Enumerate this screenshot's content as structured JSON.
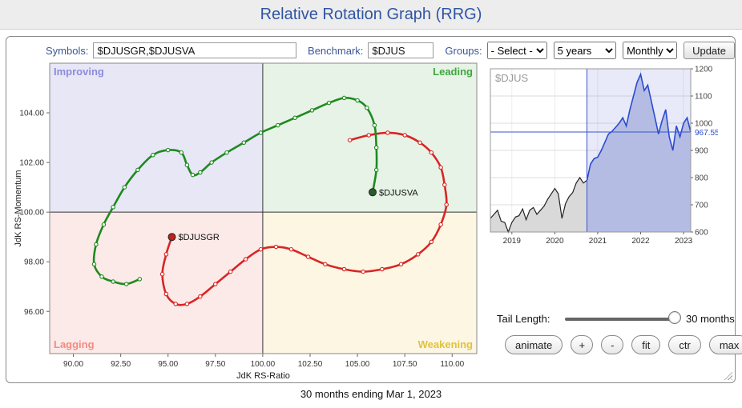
{
  "header": {
    "title": "Relative Rotation Graph (RRG)"
  },
  "colors": {
    "title": "#2f55a4",
    "toolbar_label": "#3a5795"
  },
  "toolbar": {
    "symbols_label": "Symbols:",
    "symbols_value": "$DJUSGR,$DJUSVA",
    "benchmark_label": "Benchmark:",
    "benchmark_value": "$DJUS",
    "groups_label": "Groups:",
    "groups_value": "- Select -",
    "period_value": "5 years",
    "interval_value": "Monthly",
    "update_label": "Update"
  },
  "tail": {
    "label": "Tail Length:",
    "value": "30 months"
  },
  "controls": [
    "animate",
    "+",
    "-",
    "fit",
    "ctr",
    "max"
  ],
  "footer": {
    "caption": "30 months ending Mar 1, 2023"
  },
  "chart_data": [
    {
      "type": "line",
      "title": "RRG rotation trails",
      "xlabel": "JdK RS-Ratio",
      "ylabel": "JdK RS-Momentum",
      "xlim": [
        88.75,
        111.3
      ],
      "ylim": [
        94.3,
        106.0
      ],
      "center": [
        100,
        100
      ],
      "x_tick_values": [
        90,
        92.5,
        95,
        97.5,
        100,
        102.5,
        105,
        107.5,
        110
      ],
      "x_tick_labels": [
        "90.00",
        "92.50",
        "95.00",
        "97.50",
        "100.00",
        "102.50",
        "105.00",
        "107.50",
        "110.00"
      ],
      "y_tick_values": [
        96,
        98,
        100,
        102,
        104
      ],
      "y_tick_labels": [
        "96.00",
        "98.00",
        "100.00",
        "102.00",
        "104.00"
      ],
      "quadrants": {
        "top_left": {
          "label": "Improving",
          "bg": "#e7e7f6",
          "color": "#8c8cdb"
        },
        "top_right": {
          "label": "Leading",
          "bg": "#e7f3e6",
          "color": "#3fa73f"
        },
        "bottom_left": {
          "label": "Lagging",
          "bg": "#fceae8",
          "color": "#f28b82"
        },
        "bottom_right": {
          "label": "Weakening",
          "bg": "#fcf6e3",
          "color": "#e2c23d"
        }
      },
      "series": [
        {
          "name": "$DJUSGR",
          "color": "#d92525",
          "end_color": "#c02020",
          "points": [
            [
              104.6,
              102.9
            ],
            [
              105.6,
              103.1
            ],
            [
              106.6,
              103.2
            ],
            [
              107.5,
              103.1
            ],
            [
              108.3,
              102.8
            ],
            [
              108.9,
              102.4
            ],
            [
              109.4,
              101.8
            ],
            [
              109.6,
              101.1
            ],
            [
              109.7,
              100.3
            ],
            [
              109.4,
              99.5
            ],
            [
              108.9,
              98.8
            ],
            [
              108.2,
              98.3
            ],
            [
              107.3,
              97.9
            ],
            [
              106.3,
              97.7
            ],
            [
              105.3,
              97.6
            ],
            [
              104.3,
              97.7
            ],
            [
              103.3,
              97.9
            ],
            [
              102.4,
              98.2
            ],
            [
              101.5,
              98.5
            ],
            [
              100.7,
              98.6
            ],
            [
              99.9,
              98.5
            ],
            [
              99.1,
              98.1
            ],
            [
              98.3,
              97.6
            ],
            [
              97.5,
              97.1
            ],
            [
              96.7,
              96.6
            ],
            [
              96.0,
              96.3
            ],
            [
              95.4,
              96.3
            ],
            [
              94.9,
              96.7
            ],
            [
              94.7,
              97.5
            ],
            [
              94.9,
              98.3
            ],
            [
              95.2,
              99.0
            ]
          ]
        },
        {
          "name": "$DJUSVA",
          "color": "#1e8a1e",
          "end_color": "#2a5d2a",
          "points": [
            [
              93.5,
              97.3
            ],
            [
              92.8,
              97.1
            ],
            [
              92.1,
              97.2
            ],
            [
              91.5,
              97.4
            ],
            [
              91.1,
              97.9
            ],
            [
              91.2,
              98.7
            ],
            [
              91.6,
              99.5
            ],
            [
              92.1,
              100.2
            ],
            [
              92.7,
              101.0
            ],
            [
              93.4,
              101.7
            ],
            [
              94.2,
              102.3
            ],
            [
              95.0,
              102.5
            ],
            [
              95.7,
              102.4
            ],
            [
              96.0,
              101.9
            ],
            [
              96.3,
              101.5
            ],
            [
              96.7,
              101.6
            ],
            [
              97.3,
              102.0
            ],
            [
              98.1,
              102.4
            ],
            [
              99.0,
              102.8
            ],
            [
              99.9,
              103.2
            ],
            [
              100.8,
              103.5
            ],
            [
              101.7,
              103.8
            ],
            [
              102.6,
              104.1
            ],
            [
              103.5,
              104.4
            ],
            [
              104.3,
              104.6
            ],
            [
              105.0,
              104.5
            ],
            [
              105.5,
              104.2
            ],
            [
              105.9,
              103.5
            ],
            [
              106.0,
              102.6
            ],
            [
              106.0,
              101.7
            ],
            [
              105.8,
              100.8
            ]
          ]
        }
      ]
    },
    {
      "type": "area",
      "symbol": "$DJUS",
      "ylim": [
        600,
        1200
      ],
      "y_tick_values": [
        600,
        700,
        800,
        900,
        1000,
        1100,
        1200
      ],
      "x_tick_labels": [
        "2019",
        "2020",
        "2021",
        "2022",
        "2023"
      ],
      "x_tick_positions": [
        6,
        18,
        30,
        42,
        54
      ],
      "tail_start_index": 27,
      "last_value": 967.55,
      "last_value_label": "967.55",
      "values": [
        650,
        665,
        680,
        640,
        635,
        600,
        635,
        655,
        660,
        685,
        645,
        680,
        690,
        665,
        680,
        695,
        720,
        740,
        760,
        740,
        650,
        705,
        730,
        745,
        780,
        800,
        780,
        790,
        850,
        870,
        875,
        900,
        930,
        960,
        970,
        985,
        1000,
        1020,
        990,
        1050,
        1100,
        1150,
        1180,
        1120,
        1140,
        1080,
        1020,
        960,
        1010,
        1050,
        950,
        900,
        990,
        950,
        1000,
        1020,
        967.55
      ],
      "colors": {
        "pre_line": "#222222",
        "pre_fill": "#d9d9d9",
        "tail_line": "#2b4bd0",
        "tail_fill": "#c3c9e6",
        "overlay": "rgba(110,125,215,0.16)",
        "marker_line": "#3a55cc"
      }
    }
  ]
}
